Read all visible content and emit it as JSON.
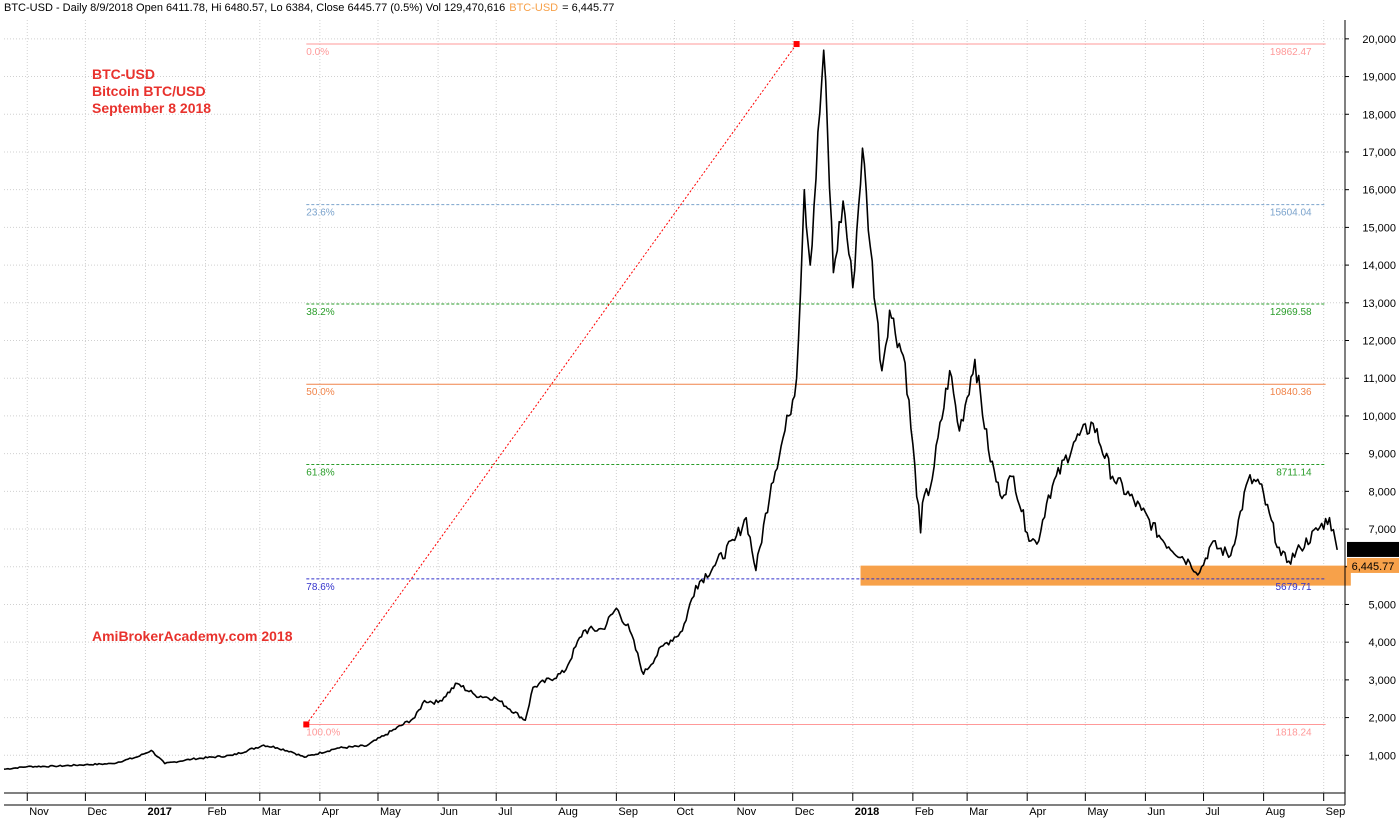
{
  "header": {
    "info": "BTC-USD - Daily 8/9/2018 Open 6411.78, Hi 6480.57, Lo 6384, Close 6445.77 (0.5%) Vol 129,470,616",
    "symbol": "BTC-USD",
    "value": "= 6,445.77"
  },
  "annotations": {
    "line1": "BTC-USD",
    "line2": "Bitcoin BTC/USD",
    "line3": "September 8 2018",
    "watermark": "AmiBrokerAcademy.com  2018"
  },
  "colors": {
    "annotation": "#e8322d",
    "header_symbol": "#f7a14a",
    "support_zone": "#f7a14a",
    "price": "#000000"
  },
  "chart_data": {
    "type": "line",
    "x_start": "2016-10-20",
    "x_end": "2018-09-12",
    "ylim": [
      0,
      20500
    ],
    "grid": true,
    "y_axis_position": "right",
    "yticks": [
      {
        "v": 1000,
        "label": "1,000"
      },
      {
        "v": 2000,
        "label": "2,000"
      },
      {
        "v": 3000,
        "label": "3,000"
      },
      {
        "v": 4000,
        "label": "4,000"
      },
      {
        "v": 5000,
        "label": "5,000"
      },
      {
        "v": 6000,
        "label": "6,000"
      },
      {
        "v": 7000,
        "label": "7,000"
      },
      {
        "v": 8000,
        "label": "8,000"
      },
      {
        "v": 9000,
        "label": "9,000"
      },
      {
        "v": 10000,
        "label": "10,000"
      },
      {
        "v": 11000,
        "label": "11,000"
      },
      {
        "v": 12000,
        "label": "12,000"
      },
      {
        "v": 13000,
        "label": "13,000"
      },
      {
        "v": 14000,
        "label": "14,000"
      },
      {
        "v": 15000,
        "label": "15,000"
      },
      {
        "v": 16000,
        "label": "16,000"
      },
      {
        "v": 17000,
        "label": "17,000"
      },
      {
        "v": 18000,
        "label": "18,000"
      },
      {
        "v": 19000,
        "label": "19,000"
      },
      {
        "v": 20000,
        "label": "20,000"
      }
    ],
    "xticks": [
      {
        "date": "2016-11-01",
        "label": "Nov",
        "bold": false
      },
      {
        "date": "2016-12-01",
        "label": "Dec",
        "bold": false
      },
      {
        "date": "2017-01-01",
        "label": "2017",
        "bold": true
      },
      {
        "date": "2017-02-01",
        "label": "Feb",
        "bold": false
      },
      {
        "date": "2017-03-01",
        "label": "Mar",
        "bold": false
      },
      {
        "date": "2017-04-01",
        "label": "Apr",
        "bold": false
      },
      {
        "date": "2017-05-01",
        "label": "May",
        "bold": false
      },
      {
        "date": "2017-06-01",
        "label": "Jun",
        "bold": false
      },
      {
        "date": "2017-07-01",
        "label": "Jul",
        "bold": false
      },
      {
        "date": "2017-08-01",
        "label": "Aug",
        "bold": false
      },
      {
        "date": "2017-09-01",
        "label": "Sep",
        "bold": false
      },
      {
        "date": "2017-10-01",
        "label": "Oct",
        "bold": false
      },
      {
        "date": "2017-11-01",
        "label": "Nov",
        "bold": false
      },
      {
        "date": "2017-12-01",
        "label": "Dec",
        "bold": false
      },
      {
        "date": "2018-01-01",
        "label": "2018",
        "bold": true
      },
      {
        "date": "2018-02-01",
        "label": "Feb",
        "bold": false
      },
      {
        "date": "2018-03-01",
        "label": "Mar",
        "bold": false
      },
      {
        "date": "2018-04-01",
        "label": "Apr",
        "bold": false
      },
      {
        "date": "2018-05-01",
        "label": "May",
        "bold": false
      },
      {
        "date": "2018-06-01",
        "label": "Jun",
        "bold": false
      },
      {
        "date": "2018-07-01",
        "label": "Jul",
        "bold": false
      },
      {
        "date": "2018-08-01",
        "label": "Aug",
        "bold": false
      },
      {
        "date": "2018-09-01",
        "label": "Sep",
        "bold": false
      }
    ],
    "series": [
      {
        "points": [
          [
            "2016-10-20",
            630
          ],
          [
            "2016-11-01",
            700
          ],
          [
            "2016-11-15",
            710
          ],
          [
            "2016-12-01",
            750
          ],
          [
            "2016-12-15",
            780
          ],
          [
            "2016-12-28",
            960
          ],
          [
            "2017-01-04",
            1130
          ],
          [
            "2017-01-11",
            780
          ],
          [
            "2017-01-25",
            900
          ],
          [
            "2017-02-15",
            1000
          ],
          [
            "2017-03-03",
            1270
          ],
          [
            "2017-03-10",
            1200
          ],
          [
            "2017-03-17",
            1100
          ],
          [
            "2017-03-24",
            950
          ],
          [
            "2017-04-10",
            1190
          ],
          [
            "2017-04-25",
            1250
          ],
          [
            "2017-05-05",
            1550
          ],
          [
            "2017-05-20",
            2000
          ],
          [
            "2017-05-25",
            2450
          ],
          [
            "2017-06-01",
            2400
          ],
          [
            "2017-06-11",
            2900
          ],
          [
            "2017-06-20",
            2600
          ],
          [
            "2017-07-01",
            2500
          ],
          [
            "2017-07-16",
            1930
          ],
          [
            "2017-07-20",
            2800
          ],
          [
            "2017-08-05",
            3200
          ],
          [
            "2017-08-15",
            4300
          ],
          [
            "2017-08-25",
            4350
          ],
          [
            "2017-09-01",
            4900
          ],
          [
            "2017-09-08",
            4300
          ],
          [
            "2017-09-15",
            3150
          ],
          [
            "2017-09-25",
            3900
          ],
          [
            "2017-10-05",
            4300
          ],
          [
            "2017-10-12",
            5500
          ],
          [
            "2017-10-21",
            6000
          ],
          [
            "2017-11-01",
            6700
          ],
          [
            "2017-11-07",
            7300
          ],
          [
            "2017-11-12",
            5900
          ],
          [
            "2017-11-20",
            8200
          ],
          [
            "2017-11-29",
            10000
          ],
          [
            "2017-12-03",
            11000
          ],
          [
            "2017-12-07",
            16000
          ],
          [
            "2017-12-10",
            14000
          ],
          [
            "2017-12-17",
            19700
          ],
          [
            "2017-12-22",
            13800
          ],
          [
            "2017-12-27",
            15700
          ],
          [
            "2018-01-01",
            13400
          ],
          [
            "2018-01-06",
            17100
          ],
          [
            "2018-01-10",
            14500
          ],
          [
            "2018-01-16",
            11200
          ],
          [
            "2018-01-20",
            12800
          ],
          [
            "2018-01-28",
            11400
          ],
          [
            "2018-02-05",
            6900
          ],
          [
            "2018-02-06",
            7700
          ],
          [
            "2018-02-10",
            8100
          ],
          [
            "2018-02-20",
            11200
          ],
          [
            "2018-02-25",
            9600
          ],
          [
            "2018-03-05",
            11500
          ],
          [
            "2018-03-12",
            9100
          ],
          [
            "2018-03-18",
            7900
          ],
          [
            "2018-03-25",
            8400
          ],
          [
            "2018-04-01",
            6900
          ],
          [
            "2018-04-06",
            6600
          ],
          [
            "2018-04-12",
            7900
          ],
          [
            "2018-04-25",
            9300
          ],
          [
            "2018-05-05",
            9800
          ],
          [
            "2018-05-15",
            8400
          ],
          [
            "2018-05-30",
            7500
          ],
          [
            "2018-06-10",
            6700
          ],
          [
            "2018-06-24",
            6100
          ],
          [
            "2018-06-29",
            5850
          ],
          [
            "2018-07-05",
            6600
          ],
          [
            "2018-07-15",
            6300
          ],
          [
            "2018-07-24",
            8300
          ],
          [
            "2018-07-30",
            8200
          ],
          [
            "2018-08-10",
            6300
          ],
          [
            "2018-08-14",
            6150
          ],
          [
            "2018-08-20",
            6500
          ],
          [
            "2018-09-04",
            7300
          ],
          [
            "2018-09-08",
            6446
          ]
        ]
      }
    ],
    "fibonacci": [
      {
        "pct": "0.0%",
        "value": 19862.47,
        "label": "19862.47",
        "color": "#ff9999"
      },
      {
        "pct": "23.6%",
        "value": 15604.04,
        "label": "15604.04",
        "color": "#7ba3cc"
      },
      {
        "pct": "38.2%",
        "value": 12969.58,
        "label": "12969.58",
        "color": "#2a9d2a"
      },
      {
        "pct": "50.0%",
        "value": 10840.36,
        "label": "10840.36",
        "color": "#f0844a"
      },
      {
        "pct": "61.8%",
        "value": 8711.14,
        "label": "8711.14",
        "color": "#2a9d2a"
      },
      {
        "pct": "78.6%",
        "value": 5679.71,
        "label": "5679.71",
        "color": "#3333cc"
      },
      {
        "pct": "100.0%",
        "value": 1818.24,
        "label": "1818.24",
        "color": "#ff9999"
      }
    ],
    "fib_start": "2017-03-25",
    "fib_end": "2018-09-02",
    "trend_line": [
      [
        "2017-03-25",
        1818.24
      ],
      [
        "2017-12-03",
        19862.47
      ]
    ],
    "support_zone": {
      "from": "2018-01-05",
      "to": "2018-09-15",
      "low": 5500,
      "high": 6030
    },
    "last_value": {
      "value": 6445.77,
      "label": "6,445.77"
    }
  }
}
